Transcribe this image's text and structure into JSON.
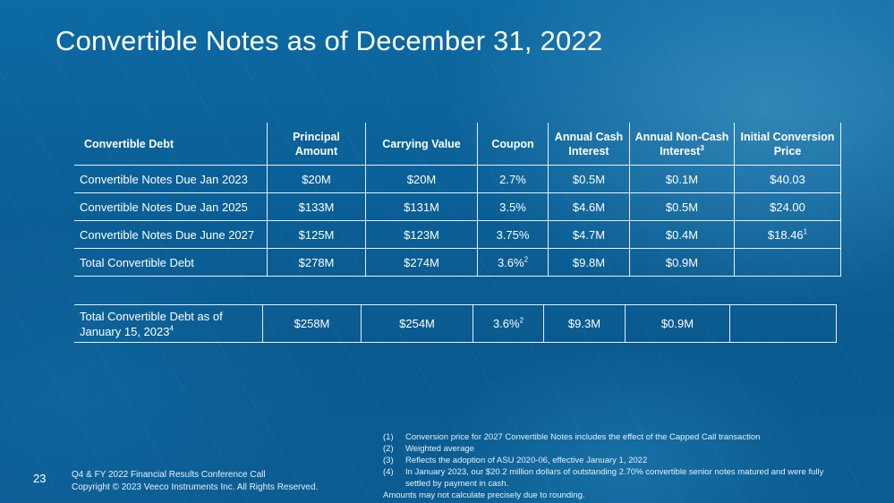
{
  "title": "Convertible Notes as of December 31, 2022",
  "table": {
    "headers": [
      "Convertible Debt",
      "Principal Amount",
      "Carrying Value",
      "Coupon",
      "Annual Cash Interest",
      "Annual Non-Cash Interest",
      "Initial Conversion Price"
    ],
    "header_footnotes": {
      "5": "3"
    },
    "rows": [
      {
        "name": "Convertible Notes Due Jan 2023",
        "principal": "$20M",
        "carrying": "$20M",
        "coupon": "2.7%",
        "coupon_sup": "",
        "cash": "$0.5M",
        "noncash": "$0.1M",
        "price": "$40.03",
        "price_sup": ""
      },
      {
        "name": "Convertible Notes Due Jan 2025",
        "principal": "$133M",
        "carrying": "$131M",
        "coupon": "3.5%",
        "coupon_sup": "",
        "cash": "$4.6M",
        "noncash": "$0.5M",
        "price": "$24.00",
        "price_sup": ""
      },
      {
        "name": "Convertible Notes Due June 2027",
        "principal": "$125M",
        "carrying": "$123M",
        "coupon": "3.75%",
        "coupon_sup": "",
        "cash": "$4.7M",
        "noncash": "$0.4M",
        "price": "$18.46",
        "price_sup": "1"
      },
      {
        "name": "Total Convertible Debt",
        "principal": "$278M",
        "carrying": "$274M",
        "coupon": "3.6%",
        "coupon_sup": "2",
        "cash": "$9.8M",
        "noncash": "$0.9M",
        "price": "",
        "price_sup": ""
      }
    ]
  },
  "table2": {
    "name": "Total Convertible Debt as of January 15, 2023",
    "name_sup": "4",
    "principal": "$258M",
    "carrying": "$254M",
    "coupon": "3.6%",
    "coupon_sup": "2",
    "cash": "$9.3M",
    "noncash": "$0.9M",
    "price": ""
  },
  "footnotes": [
    {
      "num": "(1)",
      "text": "Conversion price for 2027 Convertible Notes includes the effect of the Capped Call transaction"
    },
    {
      "num": "(2)",
      "text": "Weighted average"
    },
    {
      "num": "(3)",
      "text": "Reflects the adoption of ASU 2020-06, effective January 1, 2022"
    },
    {
      "num": "(4)",
      "text": "In January 2023, our $20.2 million dollars of outstanding 2.70% convertible senior notes matured and were fully settled by payment in cash."
    }
  ],
  "rounding_note": "Amounts may not calculate precisely due to rounding.",
  "footer": {
    "page_number": "23",
    "line1": "Q4 & FY 2022 Financial Results Conference Call",
    "line2": "Copyright © 2023 Veeco Instruments Inc. All Rights Reserved."
  }
}
